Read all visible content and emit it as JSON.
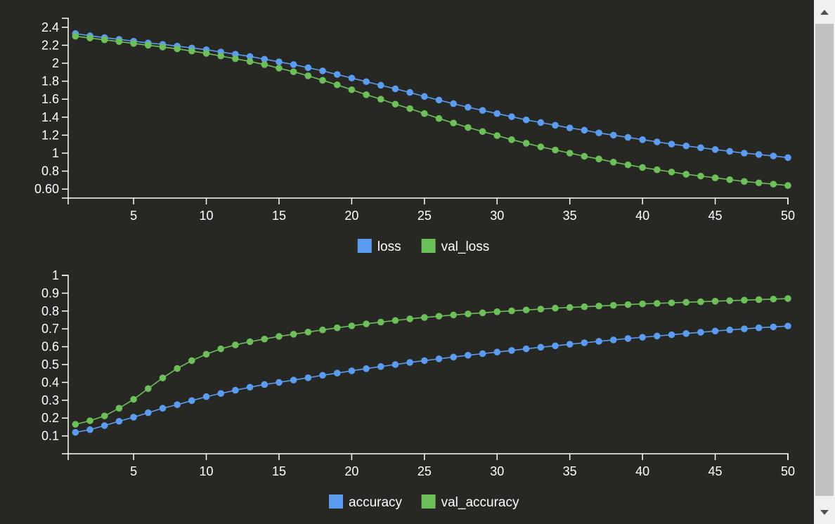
{
  "chart_data": [
    {
      "type": "line",
      "x": [
        1,
        2,
        3,
        4,
        5,
        6,
        7,
        8,
        9,
        10,
        11,
        12,
        13,
        14,
        15,
        16,
        17,
        18,
        19,
        20,
        21,
        22,
        23,
        24,
        25,
        26,
        27,
        28,
        29,
        30,
        31,
        32,
        33,
        34,
        35,
        36,
        37,
        38,
        39,
        40,
        41,
        42,
        43,
        44,
        45,
        46,
        47,
        48,
        49,
        50
      ],
      "xticks": [
        5,
        10,
        15,
        20,
        25,
        30,
        35,
        40,
        45,
        50
      ],
      "xlim": [
        0.5,
        50
      ],
      "ylim": [
        0.5,
        2.5
      ],
      "yticks": [
        0.6,
        0.8,
        1,
        1.2,
        1.4,
        1.6,
        1.8,
        2,
        2.2,
        2.4
      ],
      "ytick_labels": [
        "0.60",
        "0.8",
        "1",
        "1.2",
        "1.4",
        "1.6",
        "1.8",
        "2",
        "2.2",
        "2.4"
      ],
      "grid": false,
      "legend_position": "bottom",
      "series": [
        {
          "name": "loss",
          "color": "#5b9cf0",
          "values": [
            2.33,
            2.305,
            2.285,
            2.265,
            2.245,
            2.225,
            2.21,
            2.19,
            2.17,
            2.15,
            2.125,
            2.1,
            2.075,
            2.045,
            2.015,
            1.985,
            1.95,
            1.915,
            1.875,
            1.835,
            1.795,
            1.755,
            1.715,
            1.675,
            1.63,
            1.59,
            1.55,
            1.51,
            1.475,
            1.44,
            1.405,
            1.37,
            1.34,
            1.31,
            1.28,
            1.255,
            1.225,
            1.2,
            1.175,
            1.15,
            1.125,
            1.1,
            1.08,
            1.06,
            1.04,
            1.02,
            1.0,
            0.985,
            0.968,
            0.95
          ]
        },
        {
          "name": "val_loss",
          "color": "#6dbf59",
          "values": [
            2.3,
            2.28,
            2.26,
            2.24,
            2.22,
            2.2,
            2.18,
            2.16,
            2.135,
            2.11,
            2.08,
            2.05,
            2.02,
            1.985,
            1.945,
            1.905,
            1.86,
            1.81,
            1.76,
            1.705,
            1.65,
            1.6,
            1.545,
            1.495,
            1.44,
            1.385,
            1.335,
            1.285,
            1.24,
            1.195,
            1.15,
            1.11,
            1.07,
            1.035,
            1.0,
            0.965,
            0.935,
            0.9,
            0.87,
            0.84,
            0.815,
            0.79,
            0.765,
            0.745,
            0.725,
            0.705,
            0.685,
            0.67,
            0.655,
            0.64
          ]
        }
      ]
    },
    {
      "type": "line",
      "x": [
        1,
        2,
        3,
        4,
        5,
        6,
        7,
        8,
        9,
        10,
        11,
        12,
        13,
        14,
        15,
        16,
        17,
        18,
        19,
        20,
        21,
        22,
        23,
        24,
        25,
        26,
        27,
        28,
        29,
        30,
        31,
        32,
        33,
        34,
        35,
        36,
        37,
        38,
        39,
        40,
        41,
        42,
        43,
        44,
        45,
        46,
        47,
        48,
        49,
        50
      ],
      "xticks": [
        5,
        10,
        15,
        20,
        25,
        30,
        35,
        40,
        45,
        50
      ],
      "xlim": [
        0.5,
        50
      ],
      "ylim": [
        0.0,
        1.0
      ],
      "yticks": [
        0.1,
        0.2,
        0.3,
        0.4,
        0.5,
        0.6,
        0.7,
        0.8,
        0.9,
        1
      ],
      "ytick_labels": [
        "0.1",
        "0.2",
        "0.3",
        "0.4",
        "0.5",
        "0.6",
        "0.7",
        "0.8",
        "0.9",
        "1"
      ],
      "grid": false,
      "legend_position": "bottom",
      "series": [
        {
          "name": "accuracy",
          "color": "#5b9cf0",
          "values": [
            0.12,
            0.135,
            0.158,
            0.182,
            0.205,
            0.23,
            0.255,
            0.275,
            0.298,
            0.32,
            0.338,
            0.356,
            0.373,
            0.388,
            0.4,
            0.413,
            0.426,
            0.44,
            0.452,
            0.465,
            0.477,
            0.489,
            0.5,
            0.512,
            0.522,
            0.532,
            0.542,
            0.552,
            0.561,
            0.57,
            0.579,
            0.588,
            0.597,
            0.605,
            0.614,
            0.622,
            0.63,
            0.638,
            0.646,
            0.653,
            0.66,
            0.667,
            0.674,
            0.681,
            0.688,
            0.694,
            0.7,
            0.706,
            0.711,
            0.716
          ]
        },
        {
          "name": "val_accuracy",
          "color": "#6dbf59",
          "values": [
            0.165,
            0.185,
            0.212,
            0.255,
            0.305,
            0.365,
            0.425,
            0.478,
            0.522,
            0.558,
            0.588,
            0.61,
            0.628,
            0.643,
            0.658,
            0.67,
            0.682,
            0.694,
            0.706,
            0.717,
            0.728,
            0.738,
            0.747,
            0.756,
            0.764,
            0.771,
            0.778,
            0.784,
            0.79,
            0.796,
            0.801,
            0.806,
            0.811,
            0.816,
            0.82,
            0.824,
            0.828,
            0.832,
            0.836,
            0.84,
            0.843,
            0.846,
            0.849,
            0.852,
            0.855,
            0.858,
            0.861,
            0.864,
            0.867,
            0.87
          ]
        }
      ]
    }
  ]
}
